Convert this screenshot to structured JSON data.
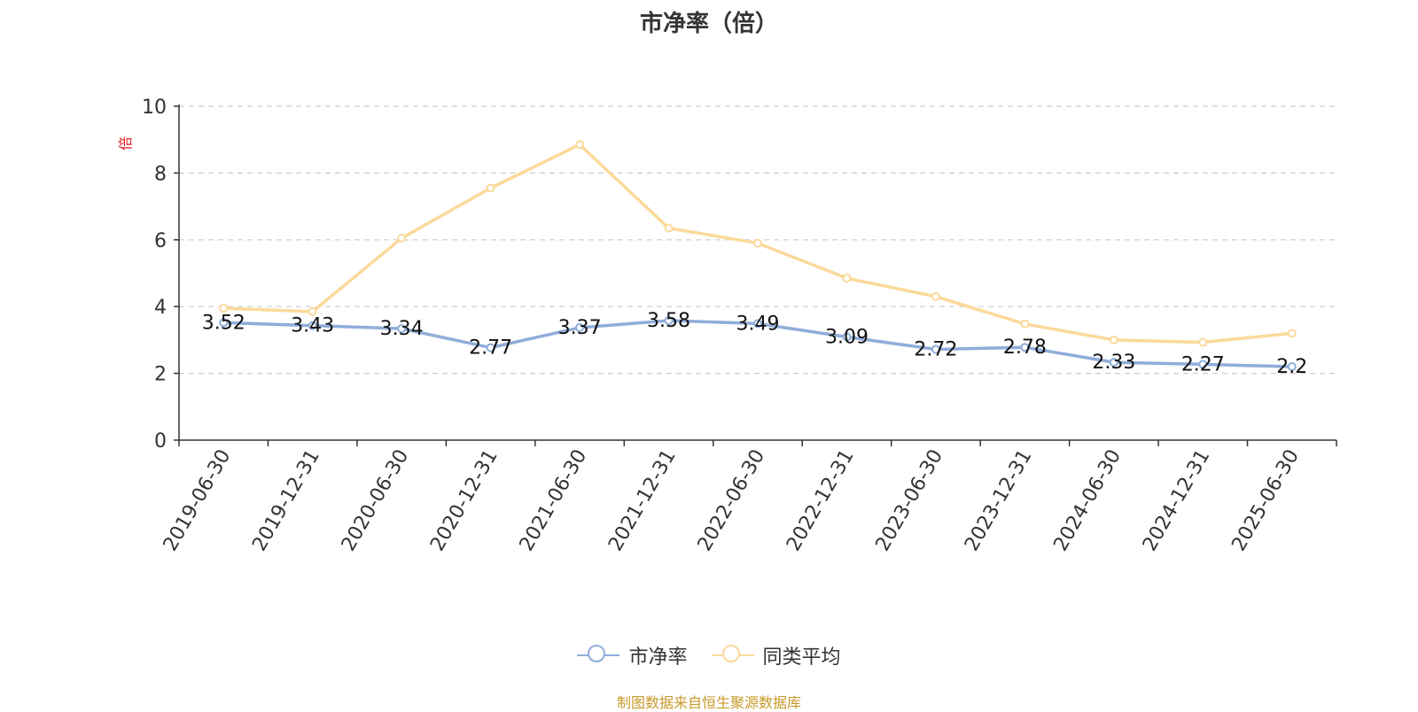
{
  "title": "市净率（倍）",
  "unit_label": "倍",
  "source": "制图数据来自恒生聚源数据库",
  "colors": {
    "pb": "#8fadd9",
    "avg": "#fbd99a",
    "axis": "#333333",
    "grid": "#cccccc"
  },
  "chart_data": {
    "type": "line",
    "title": "市净率（倍）",
    "ylabel": "倍",
    "ylim": [
      0,
      10
    ],
    "yticks": [
      0,
      2,
      4,
      6,
      8,
      10
    ],
    "grid": true,
    "legend_position": "bottom",
    "categories": [
      "2019-06-30",
      "2019-12-31",
      "2020-06-30",
      "2020-12-31",
      "2021-06-30",
      "2021-12-31",
      "2022-06-30",
      "2022-12-31",
      "2023-06-30",
      "2023-12-31",
      "2024-06-30",
      "2024-12-31",
      "2025-06-30"
    ],
    "series": [
      {
        "name": "市净率",
        "values": [
          3.52,
          3.43,
          3.34,
          2.77,
          3.37,
          3.58,
          3.49,
          3.09,
          2.72,
          2.78,
          2.33,
          2.27,
          2.2
        ],
        "labels": [
          "3.52",
          "3.43",
          "3.34",
          "2.77",
          "3.37",
          "3.58",
          "3.49",
          "3.09",
          "2.72",
          "2.78",
          "2.33",
          "2.27",
          "2.2"
        ]
      },
      {
        "name": "同类平均",
        "values": [
          3.95,
          3.85,
          6.05,
          7.55,
          8.85,
          6.35,
          5.9,
          4.85,
          4.3,
          3.48,
          3.0,
          2.93,
          3.2
        ]
      }
    ]
  }
}
